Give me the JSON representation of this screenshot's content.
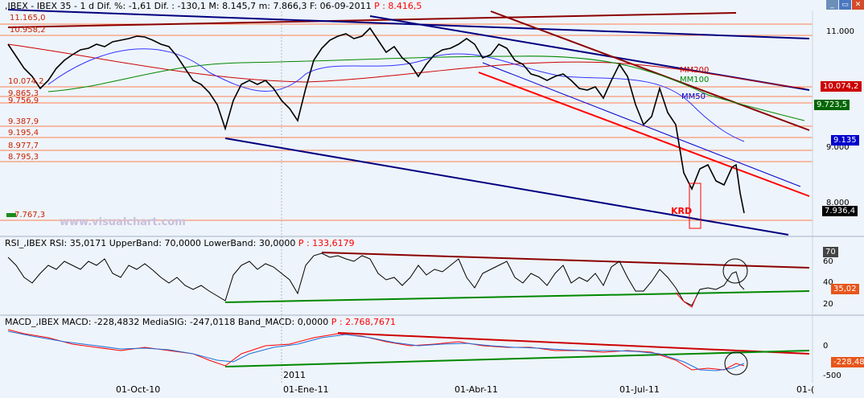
{
  "window_controls": {
    "minimize": "_",
    "restore": "▭",
    "close": "✕"
  },
  "price_panel": {
    "header_text": ",IBEX - IBEX 35 -  1 d Dif. %: -1,61 Dif. : -130,1 M: 8.145,7 m: 7.866,3 F: 06-09-2011",
    "header_p": "P : 8.416,5",
    "levels": [
      "11.165,0",
      "10.958,2",
      "10.074,2",
      "9.865,3",
      "9.756,9",
      "9.387,9",
      "9.195,4",
      "8.977,7",
      "8.795,3",
      "7.767,3"
    ],
    "axis_ticks": [
      "11.000",
      "9.000",
      "8.000"
    ],
    "tags": {
      "mm200_value": "10.074,2",
      "mm100_value": "9.723,5",
      "mm50_value": "9.135",
      "last_value": "7.936,4"
    },
    "ma_labels": {
      "mm200": "MM200",
      "mm100": "MM100",
      "mm50": "MM50"
    },
    "annotation": "KRD",
    "watermark": "www.visualchart.com",
    "colors": {
      "mm200": "#cc0000",
      "mm100": "#008800",
      "mm50": "#0000cc",
      "levels": "#ff7f50"
    }
  },
  "rsi_panel": {
    "header_text": "RSI_,IBEX RSI: 35,0171 UpperBand: 70,0000 LowerBand: 30,0000",
    "header_p": "P : 133,6179",
    "axis_ticks": [
      "70",
      "60",
      "40",
      "20"
    ],
    "tag_value": "35,02"
  },
  "macd_panel": {
    "header_text": "MACD_,IBEX MACD: -228,4832 MediaSIG: -247,0118 Band_MACD: 0,0000",
    "header_p": "P : 2.768,7671",
    "axis_ticks": [
      "0",
      "-500"
    ],
    "tag_value": "-228,48",
    "year_label": "2011"
  },
  "x_axis": [
    "01-Oct-10",
    "01-Ene-11",
    "01-Abr-11",
    "01-Jul-11",
    "01-("
  ]
}
